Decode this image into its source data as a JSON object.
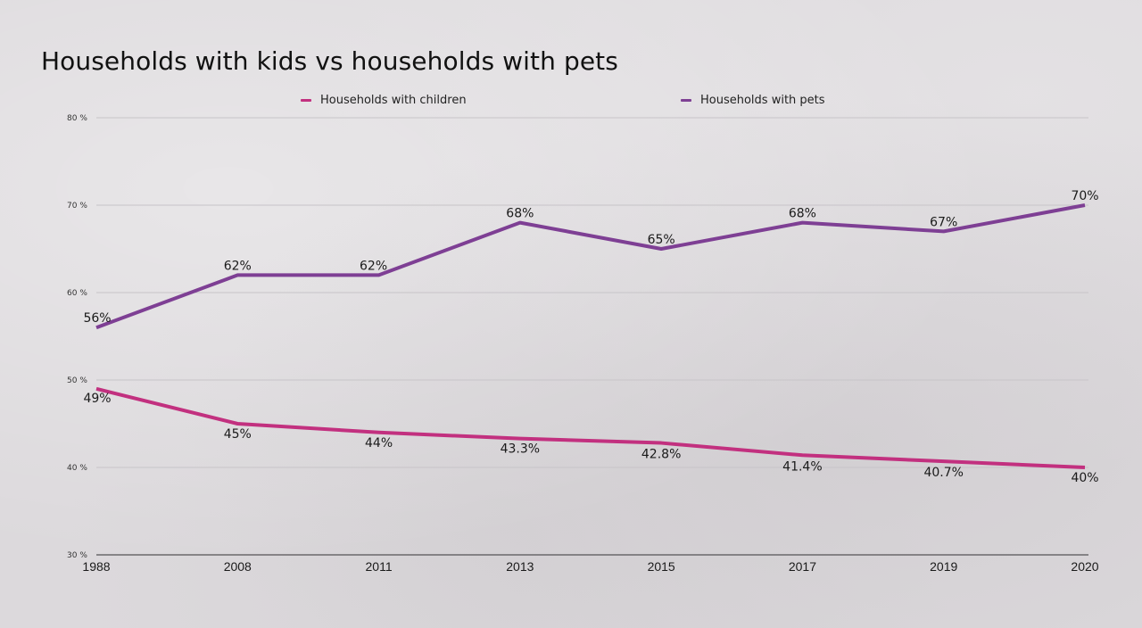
{
  "chart_data": {
    "type": "line",
    "title": "Households with kids vs households with pets",
    "xlabel": "",
    "ylabel": "",
    "categories": [
      "1988",
      "2008",
      "2011",
      "2013",
      "2015",
      "2017",
      "2019",
      "2020"
    ],
    "ylim": [
      30,
      80
    ],
    "yticks": [
      30,
      40,
      50,
      60,
      70,
      80
    ],
    "ytick_labels": [
      "30 %",
      "40 %",
      "50 %",
      "60 %",
      "70 %",
      "80 %"
    ],
    "grid": true,
    "legend_position": "top-center",
    "series": [
      {
        "name": "Households with children",
        "color": "#c2307f",
        "values": [
          49,
          45,
          44,
          43.3,
          42.8,
          41.4,
          40.7,
          40
        ],
        "labels": [
          "49%",
          "45%",
          "44%",
          "43.3%",
          "42.8%",
          "41.4%",
          "40.7%",
          "40%"
        ]
      },
      {
        "name": "Households with pets",
        "color": "#7e3f94",
        "values": [
          56,
          62,
          62,
          68,
          65,
          68,
          67,
          70
        ],
        "labels": [
          "56%",
          "62%",
          "62%",
          "68%",
          "65%",
          "68%",
          "67%",
          "70%"
        ]
      }
    ]
  }
}
